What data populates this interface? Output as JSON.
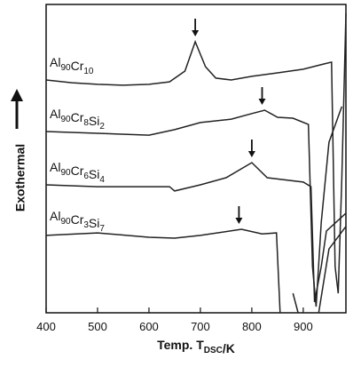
{
  "chart_data": {
    "type": "line",
    "x_label": "Temp. TDSC/K",
    "y_label": "Exothermal",
    "xlim": [
      400,
      983
    ],
    "ylim": [
      0,
      100
    ],
    "xticks": [
      400,
      500,
      600,
      700,
      800,
      900
    ],
    "series": [
      {
        "name": "Al90Cr10",
        "color": "#222222",
        "peak": 690,
        "x": [
          400,
          450,
          500,
          550,
          600,
          640,
          670,
          690,
          710,
          730,
          760,
          800,
          850,
          900,
          940,
          955,
          962,
          968,
          975,
          983
        ],
        "values": [
          75.5,
          74.6,
          74.1,
          73.8,
          74.1,
          74.9,
          78.4,
          87.9,
          79.8,
          76.1,
          75.5,
          76.7,
          77.8,
          79.0,
          80.7,
          81.3,
          15.0,
          6.3,
          43.8,
          97.1
        ]
      },
      {
        "name": "Al90Cr8Si2",
        "color": "#222222",
        "peak": 820,
        "x": [
          400,
          500,
          600,
          650,
          700,
          760,
          800,
          825,
          850,
          880,
          910,
          918,
          925,
          935,
          950,
          975
        ],
        "values": [
          58.8,
          58.2,
          57.6,
          59.4,
          61.7,
          62.8,
          64.6,
          65.7,
          63.4,
          63.1,
          61.1,
          15.0,
          2.0,
          29.4,
          55.3,
          66.9
        ]
      },
      {
        "name": "Al90Cr6Si4",
        "color": "#222222",
        "peak": 800,
        "x": [
          400,
          500,
          600,
          640,
          650,
          700,
          750,
          800,
          830,
          900,
          915,
          922,
          935,
          945,
          983
        ],
        "values": [
          41.5,
          40.9,
          40.9,
          40.9,
          39.5,
          41.5,
          43.8,
          48.7,
          43.8,
          42.4,
          40.9,
          3.5,
          15.0,
          26.5,
          32.3
        ]
      },
      {
        "name": "Al90Cr3Si7",
        "color": "#222222",
        "peak": 775,
        "x": [
          400,
          500,
          600,
          650,
          700,
          780,
          820,
          848,
          855,
          870,
          880,
          890,
          910,
          930,
          950,
          983
        ],
        "values": [
          25.1,
          25.9,
          24.5,
          24.2,
          25.1,
          27.1,
          25.6,
          25.9,
          0,
          null,
          6.3,
          0,
          null,
          0,
          20.7,
          28.0
        ]
      }
    ]
  }
}
